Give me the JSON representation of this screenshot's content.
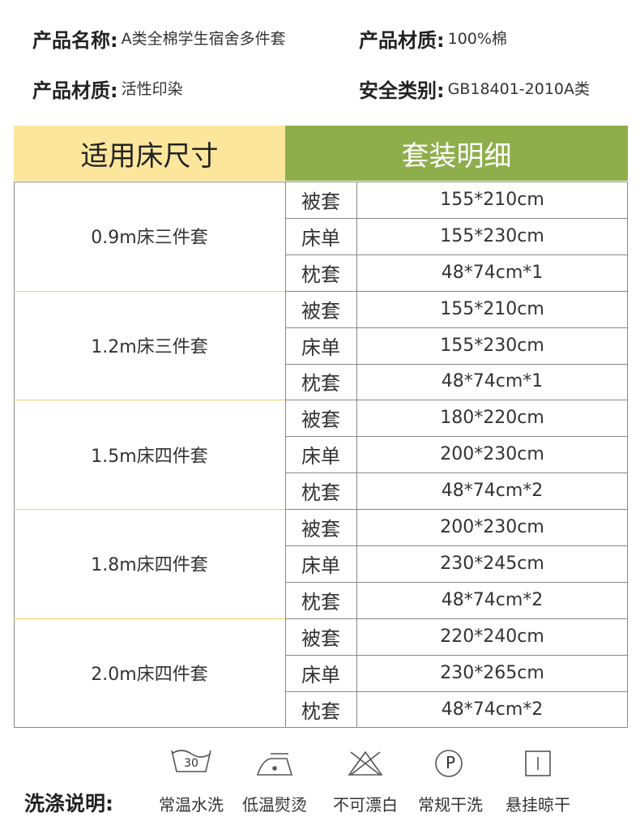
{
  "info": [
    {
      "label": "产品名称:",
      "value": "A类全棉学生宿舍多件套"
    },
    {
      "label": "产品材质:",
      "value": "100%棉"
    },
    {
      "label": "产品材质:",
      "value": "活性印染"
    },
    {
      "label": "安全类别:",
      "value": "GB18401-2010A类"
    }
  ],
  "table": {
    "headers": [
      "适用床尺寸",
      "套装明细"
    ],
    "groups": [
      {
        "size": "0.9m床三件套",
        "items": [
          {
            "name": "被套",
            "dims": "155*210cm"
          },
          {
            "name": "床单",
            "dims": "155*230cm"
          },
          {
            "name": "枕套",
            "dims": "48*74cm*1"
          }
        ]
      },
      {
        "size": "1.2m床三件套",
        "items": [
          {
            "name": "被套",
            "dims": "155*210cm"
          },
          {
            "name": "床单",
            "dims": "155*230cm"
          },
          {
            "name": "枕套",
            "dims": "48*74cm*1"
          }
        ]
      },
      {
        "size": "1.5m床四件套",
        "items": [
          {
            "name": "被套",
            "dims": "180*220cm"
          },
          {
            "name": "床单",
            "dims": "200*230cm"
          },
          {
            "name": "枕套",
            "dims": "48*74cm*2"
          }
        ]
      },
      {
        "size": "1.8m床四件套",
        "items": [
          {
            "name": "被套",
            "dims": "200*230cm"
          },
          {
            "name": "床单",
            "dims": "230*245cm"
          },
          {
            "name": "枕套",
            "dims": "48*74cm*2"
          }
        ]
      },
      {
        "size": "2.0m床四件套",
        "items": [
          {
            "name": "被套",
            "dims": "220*240cm"
          },
          {
            "name": "床单",
            "dims": "230*265cm"
          },
          {
            "name": "枕套",
            "dims": "48*74cm*2"
          }
        ]
      }
    ]
  },
  "care": {
    "title": "洗涤说明:",
    "items": [
      {
        "label": "常温水洗",
        "symbol": "30"
      },
      {
        "label": "低温熨烫"
      },
      {
        "label": "不可漂白"
      },
      {
        "label": "常规干洗",
        "symbol": "P"
      },
      {
        "label": "悬挂晾干"
      }
    ]
  }
}
